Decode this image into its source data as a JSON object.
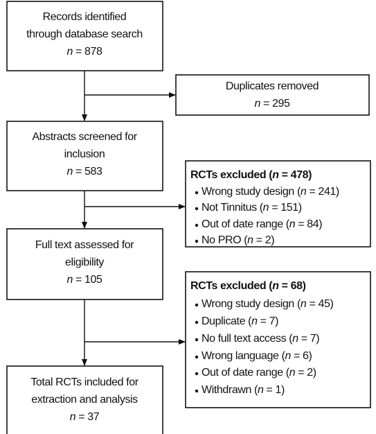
{
  "nodes": [
    {
      "lines": [
        "Records identified",
        "through database search",
        "n = 878"
      ]
    },
    {
      "lines": [
        "Duplicates removed",
        "n = 295"
      ]
    },
    {
      "lines": [
        "Abstracts screened for",
        "inclusion",
        "n = 583"
      ]
    },
    {
      "title": "RCTs excluded (n = 478)",
      "items": [
        "Wrong study design (n = 241)",
        "Not Tinnitus (n = 151)",
        "Out of date range (n = 84)",
        "No PRO (n = 2)"
      ]
    },
    {
      "lines": [
        "Full text assessed for",
        "eligibility",
        "n = 105"
      ]
    },
    {
      "title": "RCTs excluded (n = 68)",
      "items": [
        "Wrong study design (n = 45)",
        "Duplicate (n = 7)",
        "No full text access (n = 7)",
        "Wrong language (n = 6)",
        "Out of date range (n = 2)",
        "Withdrawn (n = 1)"
      ]
    },
    {
      "lines": [
        "Total RCTs included for",
        "extraction and analysis",
        "n = 37"
      ]
    }
  ]
}
